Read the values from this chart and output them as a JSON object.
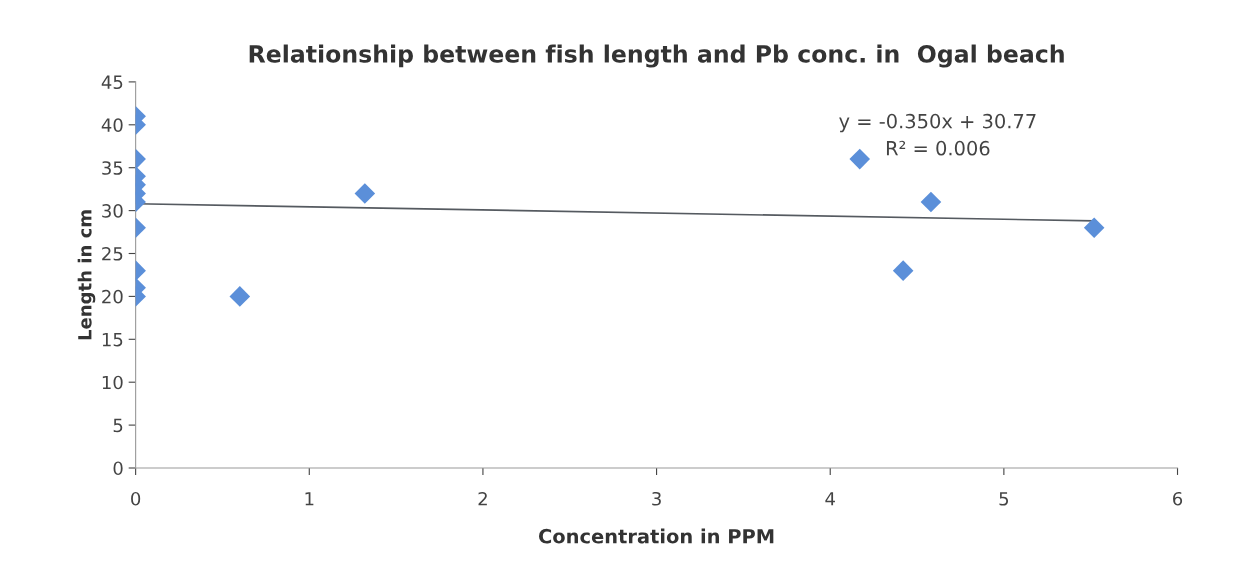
{
  "chart_data": {
    "type": "scatter",
    "title": "Relationship between fish length and Pb conc. in  Ogal beach",
    "xlabel": "Concentration in PPM",
    "ylabel": "Length in cm",
    "xlim": [
      0,
      6
    ],
    "xticks": [
      0,
      1,
      2,
      3,
      4,
      5,
      6
    ],
    "ylim": [
      0,
      45
    ],
    "yticks": [
      0,
      5,
      10,
      15,
      20,
      25,
      30,
      35,
      40,
      45
    ],
    "grid": false,
    "legend": false,
    "series": [
      {
        "marker": "diamond",
        "color": "#5b8fd9",
        "x": [
          0,
          0,
          0,
          0,
          0,
          0,
          0,
          0,
          0,
          0,
          0,
          0.6,
          1.32,
          4.17,
          4.42,
          4.58,
          5.52
        ],
        "values": [
          41,
          40,
          36,
          34,
          33,
          32,
          31,
          28,
          23,
          21,
          20,
          20,
          32,
          36,
          23,
          31,
          28
        ]
      },
      {
        "type": "line",
        "color": "#555a60",
        "x": [
          0,
          5.52
        ],
        "values": [
          30.8,
          28.8
        ]
      }
    ],
    "annotations": [
      "y = -0.350x + 30.77",
      "R² = 0.006"
    ]
  }
}
